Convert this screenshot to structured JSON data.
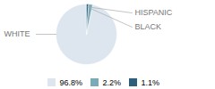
{
  "chart_data": {
    "type": "pie",
    "categories": [
      "WHITE",
      "HISPANIC",
      "BLACK"
    ],
    "values": [
      96.8,
      2.2,
      1.1
    ],
    "value_labels": [
      "96.8%",
      "2.2%",
      "1.1%"
    ],
    "colors": [
      "#dde6ef",
      "#7aaab8",
      "#2d5f7a"
    ],
    "legend": "bottom"
  }
}
